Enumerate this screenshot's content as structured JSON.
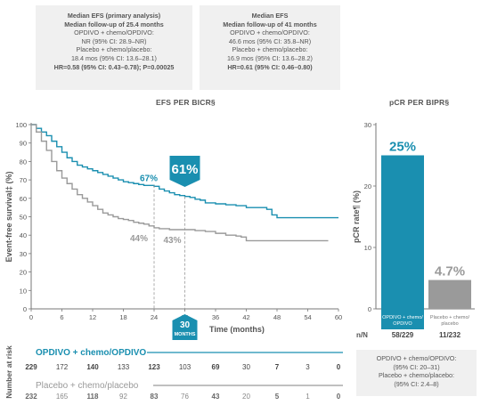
{
  "boxes": {
    "primary": {
      "title1": "Median EFS (primary analysis)",
      "title2": "Median follow-up of 25.4 months",
      "line1": "OPDIVO + chemo/OPDIVO:",
      "line2": "NR (95% CI: 28.9–NR)",
      "line3": "Placebo + chemo/placebo:",
      "line4": "18.4 mos (95% CI: 13.6–28.1)",
      "hr": "HR=0.58 (95% CI: 0.43–0.78); P=0.00025"
    },
    "followup41": {
      "title1": "Median EFS",
      "title2": "Median follow-up of 41 months",
      "line1": "OPDIVO + chemo/OPDIVO:",
      "line2": "46.6 mos (95% CI: 35.8–NR)",
      "line3": "Placebo + chemo/placebo:",
      "line4": "16.9 mos (95% CI: 13.6–28.2)",
      "hr": "HR=0.61 (95% CI: 0.46–0.80)"
    }
  },
  "titles": {
    "efs": "EFS PER BICR§",
    "pcr": "pCR PER BIPR§"
  },
  "annotations": {
    "opdivo_24": "67%",
    "placebo_24": "44%",
    "opdivo_30": "61%",
    "placebo_30": "43%",
    "marker_30": "30",
    "marker_30_sub": "MONTHS"
  },
  "risk_table": {
    "side_label": "Number at risk",
    "opdivo_label": "OPDIVO + chemo/OPDIVO",
    "placebo_label": "Placebo + chemo/placebo",
    "opdivo": [
      "229",
      "172",
      "140",
      "133",
      "123",
      "103",
      "69",
      "30",
      "7",
      "3",
      "0"
    ],
    "placebo": [
      "232",
      "165",
      "118",
      "92",
      "83",
      "76",
      "43",
      "20",
      "5",
      "1",
      "0"
    ]
  },
  "pcr_panel": {
    "nn_label": "n/N",
    "opdivo_nn": "58/229",
    "placebo_nn": "11/232",
    "note_lines": [
      "OPDIVO + chemo/OPDIVO:",
      "(95% CI: 20–31)",
      "Placebo + chemo/placebo:",
      "(95% CI: 2.4–8)"
    ]
  },
  "colors": {
    "opdivo": "#1a8fb0",
    "placebo": "#9a9a9a",
    "text": "#555555",
    "box_bg": "#f0f0f0"
  },
  "chart_data": [
    {
      "type": "line",
      "title": "EFS PER BICR§",
      "xlabel": "Time (months)",
      "ylabel": "Event-free survival‡ (%)",
      "xlim": [
        0,
        60
      ],
      "ylim": [
        0,
        100
      ],
      "xticks": [
        "0",
        "6",
        "12",
        "18",
        "24",
        "30",
        "36",
        "42",
        "48",
        "54",
        "60"
      ],
      "yticks": [
        "0",
        "10",
        "20",
        "30",
        "40",
        "50",
        "60",
        "70",
        "80",
        "90",
        "100"
      ],
      "series": [
        {
          "name": "OPDIVO + chemo/OPDIVO",
          "color": "#1a8fb0",
          "x": [
            0,
            1,
            2,
            3,
            4,
            5,
            6,
            7,
            8,
            9,
            10,
            11,
            12,
            13,
            14,
            15,
            16,
            17,
            18,
            19,
            20,
            21,
            22,
            23,
            24,
            25,
            26,
            27,
            28,
            29,
            30,
            31,
            32,
            33,
            34,
            36,
            38,
            40,
            42,
            44,
            46,
            47,
            48,
            50,
            52,
            54,
            56,
            58,
            60
          ],
          "y": [
            100,
            98,
            96,
            94,
            91,
            88,
            85,
            82,
            80,
            78,
            77,
            76,
            75,
            74,
            73,
            72,
            71,
            70,
            69,
            68.5,
            68,
            67.5,
            67,
            67,
            66.5,
            65,
            64,
            63,
            62,
            61.5,
            61,
            60.5,
            59.5,
            59,
            57.5,
            57,
            56.5,
            56,
            55,
            55,
            54,
            51,
            49.5,
            49.5,
            49.5,
            49.5,
            49.5,
            49.5,
            49.5
          ]
        },
        {
          "name": "Placebo + chemo/placebo",
          "color": "#9a9a9a",
          "x": [
            0,
            1,
            2,
            3,
            4,
            5,
            6,
            7,
            8,
            9,
            10,
            11,
            12,
            13,
            14,
            15,
            16,
            17,
            18,
            19,
            20,
            21,
            22,
            23,
            24,
            25,
            26,
            27,
            28,
            29,
            30,
            32,
            34,
            36,
            38,
            40,
            41,
            42,
            44,
            46,
            48,
            50,
            52,
            54,
            56,
            58
          ],
          "y": [
            100,
            96,
            91,
            86,
            80,
            75,
            71,
            68,
            65,
            62,
            60,
            58,
            56,
            54,
            52,
            51,
            50,
            49,
            48.5,
            48,
            47,
            46.5,
            46,
            45,
            44,
            43.5,
            43.5,
            43,
            43,
            43,
            43,
            42.5,
            42,
            41,
            40,
            39.5,
            39,
            37,
            37,
            37,
            37,
            37,
            37,
            37,
            37,
            37
          ]
        }
      ]
    },
    {
      "type": "bar",
      "title": "pCR PER BIPR§",
      "ylabel": "pCR rate¶ (%)",
      "ylim": [
        0,
        30
      ],
      "yticks": [
        "0",
        "10",
        "20",
        "30"
      ],
      "categories": [
        "OPDIVO + chemo/OPDIVO",
        "Placebo + chemo/placebo"
      ],
      "values": [
        25,
        4.7
      ],
      "value_labels": [
        "25%",
        "4.7%"
      ],
      "colors": [
        "#1a8fb0",
        "#9a9a9a"
      ]
    }
  ]
}
